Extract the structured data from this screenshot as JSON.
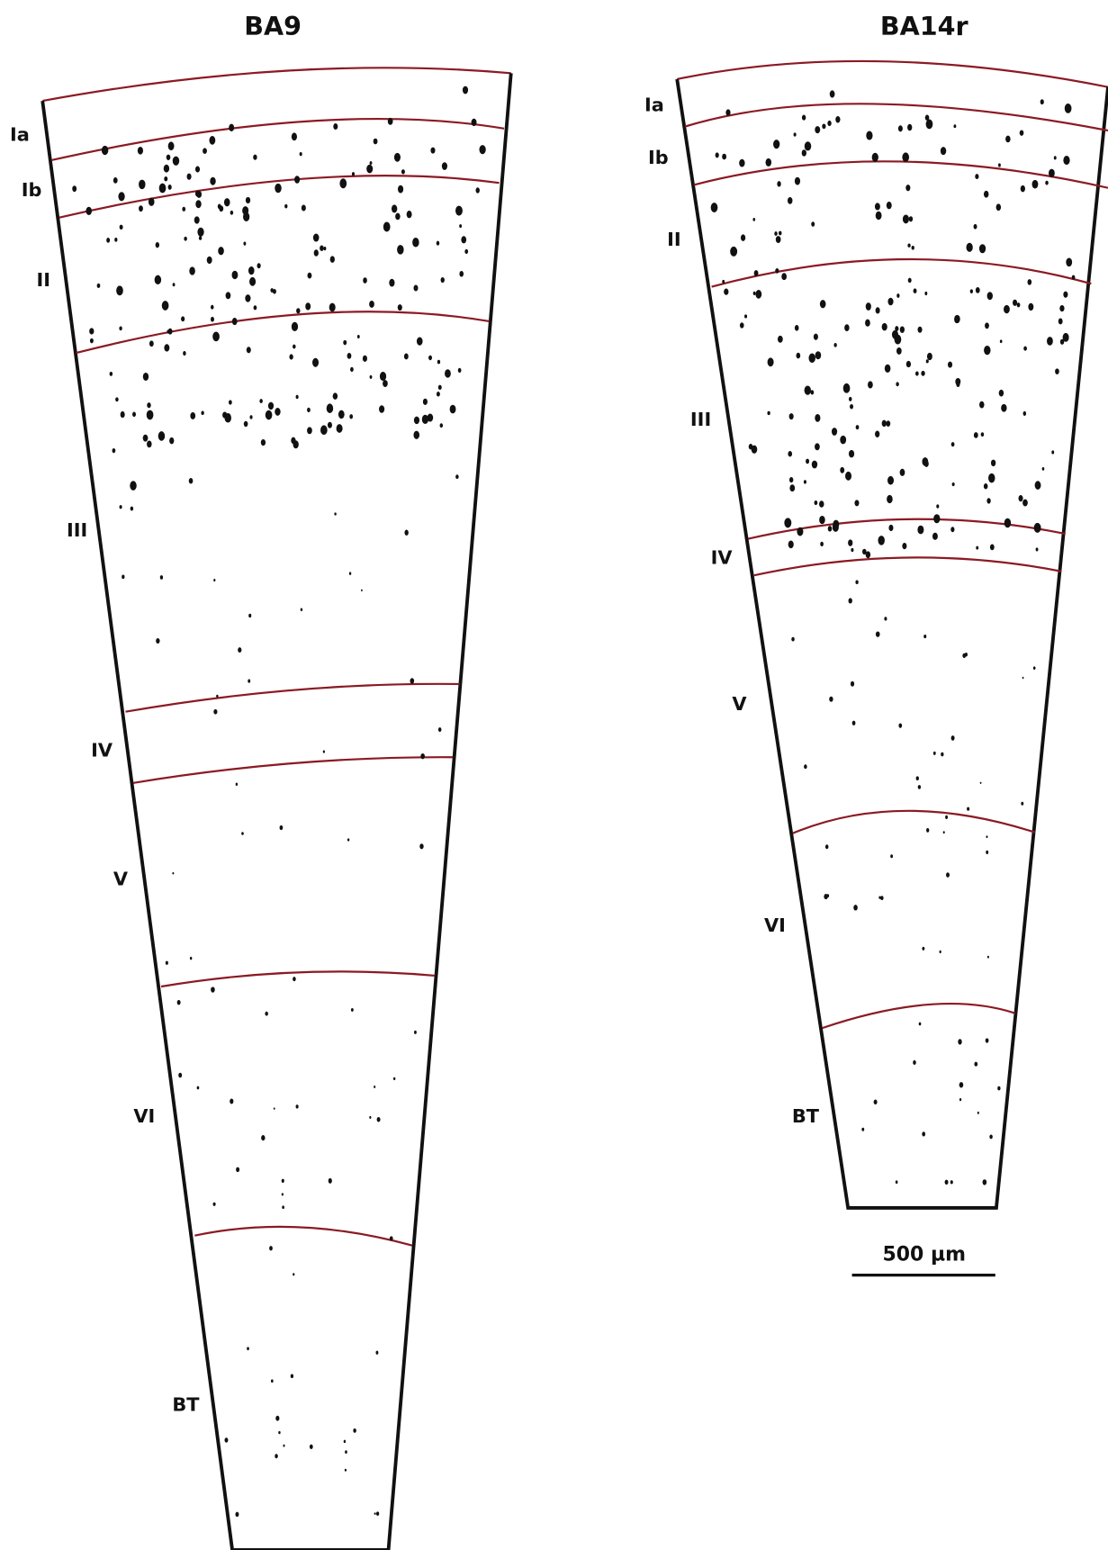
{
  "panels": [
    {
      "title": "BA9",
      "layers": [
        "Ia",
        "Ib",
        "II",
        "III",
        "IV",
        "V",
        "VI",
        "BT"
      ]
    },
    {
      "title": "BA14r",
      "layers": [
        "Ia",
        "Ib",
        "II",
        "III",
        "IV",
        "V",
        "VI",
        "BT"
      ]
    }
  ],
  "scale_bar": "500 µm"
}
